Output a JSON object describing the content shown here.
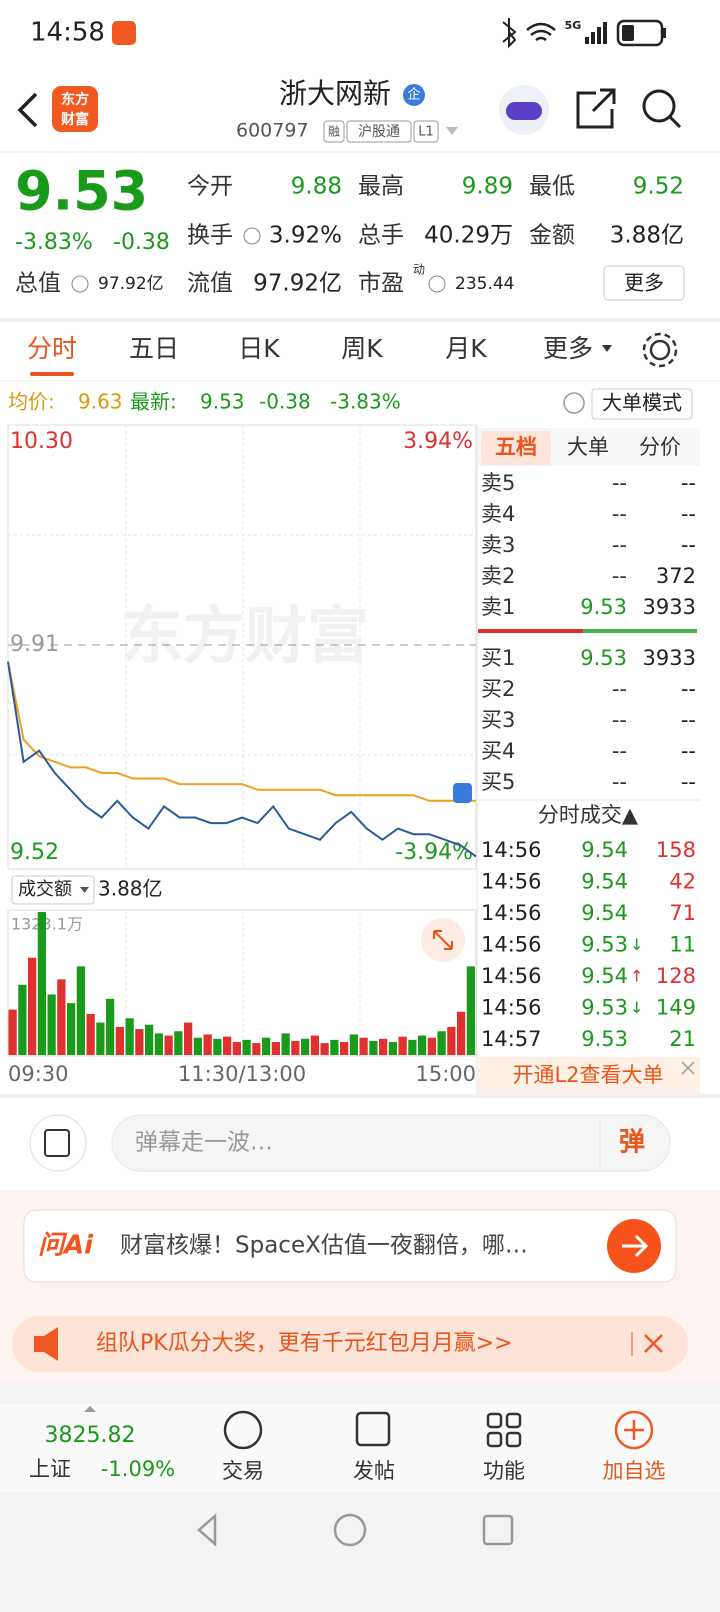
{
  "status_bar": {
    "time": "14:58",
    "network": "5G"
  },
  "header": {
    "app_icon": [
      "东方",
      "财富"
    ],
    "title": "浙大网新",
    "badge": "企",
    "code": "600797",
    "tags": [
      "融",
      "沪股通",
      "L1"
    ]
  },
  "quote": {
    "price": "9.53",
    "change_pct": "-3.83%",
    "change": "-0.38",
    "stats": [
      {
        "label": "今开",
        "value": "9.88",
        "color": "#1a9a1a"
      },
      {
        "label": "最高",
        "value": "9.89",
        "color": "#1a9a1a"
      },
      {
        "label": "最低",
        "value": "9.52",
        "color": "#1a9a1a"
      },
      {
        "label": "换手",
        "value": "3.92%"
      },
      {
        "label": "总手",
        "value": "40.29万"
      },
      {
        "label": "金额",
        "value": "3.88亿"
      },
      {
        "label": "总值",
        "value": "97.92亿"
      },
      {
        "label": "流值",
        "value": "97.92亿"
      },
      {
        "label": "市盈",
        "superscript": "动",
        "value": "235.44"
      }
    ],
    "more_button": "更多"
  },
  "tabs": {
    "items": [
      "分时",
      "五日",
      "日K",
      "周K",
      "月K",
      "更多"
    ],
    "active": 0
  },
  "info_bar": {
    "avg_label": "均价:",
    "avg": "9.63",
    "latest_label": "最新:",
    "latest": "9.53",
    "change": "-0.38",
    "change_pct": "-3.83%",
    "mode_button": "大单模式"
  },
  "intraday": {
    "type": "line",
    "watermark": "东方财富",
    "x": [
      0,
      8,
      16,
      24,
      32,
      40,
      48,
      56,
      64,
      72,
      80,
      88,
      96,
      104,
      112,
      120,
      128,
      136,
      144,
      152,
      160,
      168,
      176,
      184,
      192,
      200,
      208,
      216,
      224,
      232,
      240
    ],
    "xlim": [
      0,
      240
    ],
    "xticks": [
      {
        "value": 0,
        "label": "09:30"
      },
      {
        "value": 120,
        "label": "11:30/13:00"
      },
      {
        "value": 240,
        "label": "15:00"
      }
    ],
    "ylim": [
      9.52,
      10.3
    ],
    "yticks": [
      {
        "value": 10.3,
        "label": "10.30"
      },
      {
        "value": 9.91,
        "label": "9.91"
      },
      {
        "value": 9.52,
        "label": "9.52"
      }
    ],
    "y2lim": [
      -3.94,
      3.94
    ],
    "y2ticks": [
      {
        "value": 3.94,
        "label": "3.94%"
      },
      {
        "value": -3.94,
        "label": "-3.94%"
      }
    ],
    "price": {
      "color": "#2a5c9a",
      "values": [
        9.88,
        9.7,
        9.72,
        9.68,
        9.65,
        9.62,
        9.6,
        9.63,
        9.6,
        9.58,
        9.62,
        9.6,
        9.6,
        9.59,
        9.59,
        9.6,
        9.59,
        9.62,
        9.58,
        9.57,
        9.56,
        9.59,
        9.61,
        9.58,
        9.56,
        9.58,
        9.57,
        9.57,
        9.56,
        9.55,
        9.53
      ]
    },
    "average": {
      "color": "#f0a020",
      "values": [
        9.88,
        9.74,
        9.71,
        9.7,
        9.69,
        9.69,
        9.68,
        9.68,
        9.67,
        9.67,
        9.67,
        9.66,
        9.66,
        9.66,
        9.66,
        9.66,
        9.65,
        9.65,
        9.65,
        9.65,
        9.65,
        9.64,
        9.64,
        9.64,
        9.64,
        9.64,
        9.64,
        9.63,
        9.63,
        9.63,
        9.63
      ]
    }
  },
  "volume": {
    "type": "bar",
    "label": "成交额",
    "total": "3.88亿",
    "x": [
      0,
      5,
      10,
      15,
      20,
      25,
      30,
      35,
      40,
      45,
      50,
      55,
      60,
      65,
      70,
      75,
      80,
      85,
      90,
      95,
      100,
      105,
      110,
      115,
      120,
      125,
      130,
      135,
      140,
      145,
      150,
      155,
      160,
      165,
      170,
      175,
      180,
      185,
      190,
      195,
      200,
      205,
      210,
      215,
      220,
      225,
      230,
      235
    ],
    "xlim": [
      0,
      240
    ],
    "ylim": [
      0,
      1323.1
    ],
    "yticks": [
      {
        "value": 1323.1,
        "label": "1323.1万"
      }
    ],
    "values": [
      420,
      650,
      900,
      1323.1,
      560,
      700,
      480,
      820,
      380,
      300,
      520,
      260,
      340,
      240,
      280,
      200,
      180,
      220,
      300,
      160,
      190,
      150,
      170,
      120,
      140,
      110,
      160,
      120,
      200,
      130,
      150,
      180,
      110,
      140,
      120,
      190,
      160,
      130,
      150,
      120,
      170,
      140,
      180,
      160,
      220,
      260,
      400,
      820
    ],
    "colors": [
      "#e03030",
      "#1a9a1a",
      "#e03030",
      "#1a9a1a",
      "#1a9a1a",
      "#e03030",
      "#1a9a1a",
      "#1a9a1a",
      "#e03030",
      "#1a9a1a",
      "#1a9a1a",
      "#e03030",
      "#1a9a1a",
      "#e03030",
      "#1a9a1a",
      "#1a9a1a",
      "#e03030",
      "#1a9a1a",
      "#e03030",
      "#1a9a1a",
      "#e03030",
      "#1a9a1a",
      "#e03030",
      "#e03030",
      "#1a9a1a",
      "#e03030",
      "#1a9a1a",
      "#e03030",
      "#1a9a1a",
      "#e03030",
      "#1a9a1a",
      "#e03030",
      "#e03030",
      "#1a9a1a",
      "#e03030",
      "#1a9a1a",
      "#e03030",
      "#1a9a1a",
      "#e03030",
      "#1a9a1a",
      "#e03030",
      "#1a9a1a",
      "#1a9a1a",
      "#e03030",
      "#1a9a1a",
      "#e03030",
      "#e03030",
      "#1a9a1a"
    ]
  },
  "order_book": {
    "tabs": [
      "五档",
      "大单",
      "分价"
    ],
    "active_tab": 0,
    "asks": [
      {
        "label": "卖5",
        "price": "--",
        "volume": "--"
      },
      {
        "label": "卖4",
        "price": "--",
        "volume": "--"
      },
      {
        "label": "卖3",
        "price": "--",
        "volume": "--"
      },
      {
        "label": "卖2",
        "price": "--",
        "volume": "372"
      },
      {
        "label": "卖1",
        "price": "9.53",
        "volume": "3933"
      }
    ],
    "bids": [
      {
        "label": "买1",
        "price": "9.53",
        "volume": "3933"
      },
      {
        "label": "买2",
        "price": "--",
        "volume": "--"
      },
      {
        "label": "买3",
        "price": "--",
        "volume": "--"
      },
      {
        "label": "买4",
        "price": "--",
        "volume": "--"
      },
      {
        "label": "买5",
        "price": "--",
        "volume": "--"
      }
    ]
  },
  "trades": {
    "title": "分时成交▲",
    "rows": [
      {
        "time": "14:56",
        "price": "9.54",
        "volume": "158",
        "color": "#e03030"
      },
      {
        "time": "14:56",
        "price": "9.54",
        "volume": "42",
        "color": "#e03030"
      },
      {
        "time": "14:56",
        "price": "9.54",
        "volume": "71",
        "color": "#e03030"
      },
      {
        "time": "14:56",
        "price": "9.53",
        "arrow": "↓",
        "volume": "11",
        "color": "#1a9a1a"
      },
      {
        "time": "14:56",
        "price": "9.54",
        "arrow": "↑",
        "volume": "128",
        "color": "#e03030"
      },
      {
        "time": "14:56",
        "price": "9.53",
        "arrow": "↓",
        "volume": "149",
        "color": "#1a9a1a"
      },
      {
        "time": "14:57",
        "price": "9.53",
        "volume": "21",
        "color": "#1a9a1a"
      }
    ]
  },
  "l2_promo": "开通L2查看大单",
  "comment": {
    "placeholder": "弹幕走一波…",
    "button": "弹"
  },
  "ai_banner": {
    "logo": "问Ai",
    "text": "财富核爆！SpaceX估值一夜翻倍，哪…"
  },
  "promo": "组队PK瓜分大奖，更有千元红包月月赢>>",
  "bottom_bar": {
    "index_value": "3825.82",
    "index_name": "上证",
    "index_change": "-1.09%",
    "items": [
      "交易",
      "发帖",
      "功能",
      "加自选"
    ]
  }
}
